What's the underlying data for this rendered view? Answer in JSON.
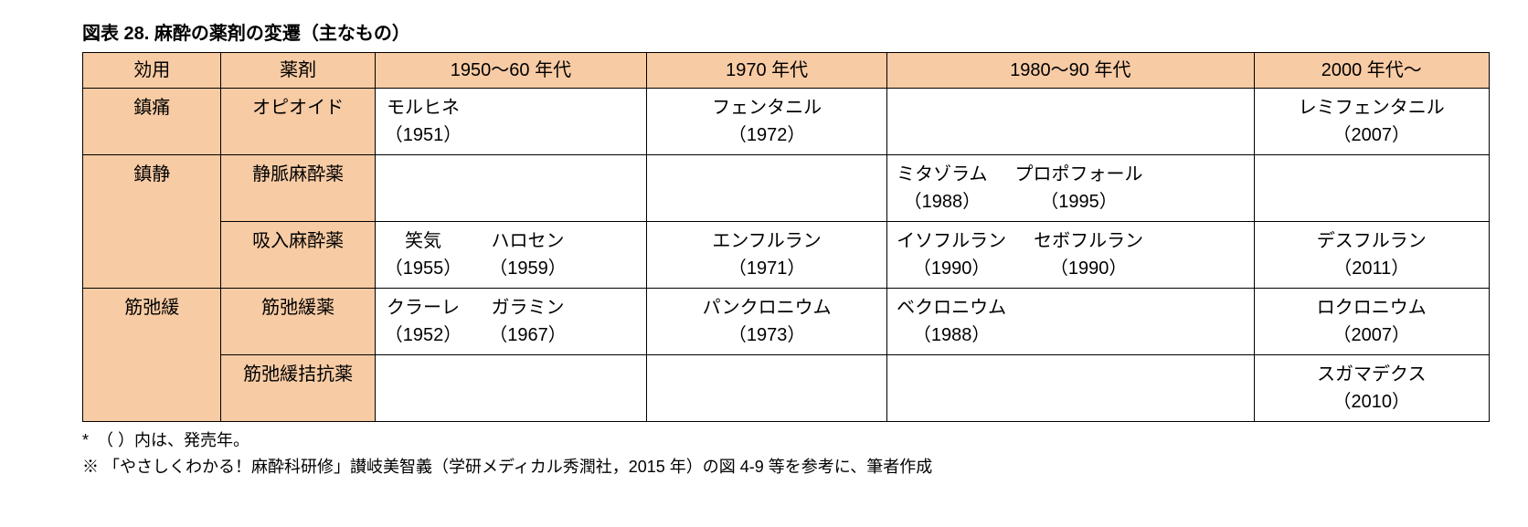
{
  "title": "図表 28.  麻酔の薬剤の変遷（主なもの）",
  "headers": {
    "effect": "効用",
    "drug": "薬剤",
    "era1950": "1950～60 年代",
    "era1970": "1970 年代",
    "era1980": "1980～90 年代",
    "era2000": "2000 年代～"
  },
  "rows": {
    "analgesia": {
      "effect": "鎮痛",
      "drugcat": "オピオイド",
      "era1950": [
        {
          "name": "モルヒネ",
          "year": "（1951）"
        }
      ],
      "era1970": [
        {
          "name": "フェンタニル",
          "year": "（1972）"
        }
      ],
      "era1980": [],
      "era2000": [
        {
          "name": "レミフェンタニル",
          "year": "（2007）"
        }
      ]
    },
    "sedation_iv": {
      "effect": "鎮静",
      "drugcat": "静脈麻酔薬",
      "era1950": [],
      "era1970": [],
      "era1980": [
        {
          "name": "ミタゾラム",
          "year": "（1988）"
        },
        {
          "name": "プロポフォール",
          "year": "（1995）"
        }
      ],
      "era2000": []
    },
    "sedation_inh": {
      "drugcat": "吸入麻酔薬",
      "era1950": [
        {
          "name": "笑気",
          "year": "（1955）"
        },
        {
          "name": "ハロセン",
          "year": "（1959）"
        }
      ],
      "era1970": [
        {
          "name": "エンフルラン",
          "year": "（1971）"
        }
      ],
      "era1980": [
        {
          "name": "イソフルラン",
          "year": "（1990）"
        },
        {
          "name": "セボフルラン",
          "year": "（1990）"
        }
      ],
      "era2000": [
        {
          "name": "デスフルラン",
          "year": "（2011）"
        }
      ]
    },
    "relaxant": {
      "effect": "筋弛緩",
      "drugcat": "筋弛緩薬",
      "era1950": [
        {
          "name": "クラーレ",
          "year": "（1952）"
        },
        {
          "name": "ガラミン",
          "year": "（1967）"
        }
      ],
      "era1970": [
        {
          "name": "パンクロニウム",
          "year": "（1973）"
        }
      ],
      "era1980": [
        {
          "name": "ベクロニウム",
          "year": "（1988）"
        }
      ],
      "era2000": [
        {
          "name": "ロクロニウム",
          "year": "（2007）"
        }
      ]
    },
    "relaxant_antag": {
      "drugcat": "筋弛緩拮抗薬",
      "era1950": [],
      "era1970": [],
      "era1980": [],
      "era2000": [
        {
          "name": "スガマデクス",
          "year": "（2010）"
        }
      ]
    }
  },
  "footnotes": {
    "line1": "*　（ ）内は、発売年。",
    "line2": "※ 「やさしくわかる！麻酔科研修」讃岐美智義（学研メディカル秀潤社，2015 年）の図 4-9 等を参考に、筆者作成"
  },
  "colors": {
    "header_bg": "#f7cba4",
    "border": "#000000",
    "background": "#ffffff"
  }
}
